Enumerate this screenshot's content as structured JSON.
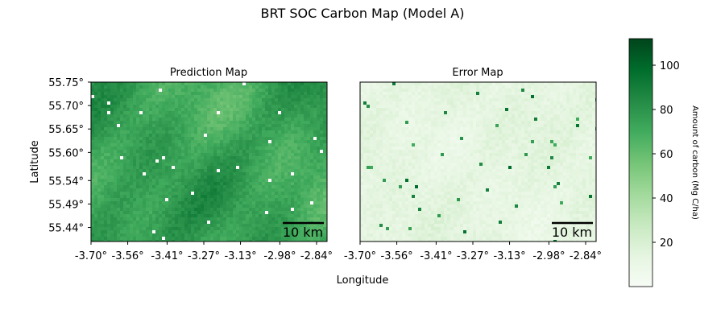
{
  "figure": {
    "title": "BRT SOC Carbon Map (Model A)"
  },
  "chart_data": [
    {
      "type": "heatmap",
      "title": "Prediction Map",
      "xlabel": "Longitude",
      "ylabel": "Latitude",
      "x_ticks": [
        "-3.70°",
        "-3.56°",
        "-3.41°",
        "-3.27°",
        "-3.13°",
        "-2.98°",
        "-2.84°"
      ],
      "y_ticks": [
        "55.75°",
        "55.70°",
        "55.65°",
        "55.60°",
        "55.54°",
        "55.49°",
        "55.44°"
      ],
      "xlim": [
        -3.7,
        -2.8
      ],
      "ylim": [
        55.41,
        55.75
      ],
      "scale_bar": "10 km",
      "value_range": [
        40,
        95
      ],
      "colormap": "Greens",
      "nodata_color": "#ffffff"
    },
    {
      "type": "heatmap",
      "title": "Error Map",
      "x_ticks": [
        "-3.70°",
        "-3.56°",
        "-3.41°",
        "-3.27°",
        "-3.13°",
        "-2.98°",
        "-2.84°"
      ],
      "xlim": [
        -3.7,
        -2.8
      ],
      "scale_bar": "10 km",
      "value_range": [
        0,
        30
      ],
      "colormap": "Greens"
    }
  ],
  "colorbar": {
    "label": "Amount of carbon (Mg C/ha)",
    "ticks": [
      "20",
      "40",
      "60",
      "80",
      "100"
    ],
    "range": [
      0,
      112
    ],
    "colormap": "Greens",
    "colors": [
      "#f7fcf5",
      "#e5f5e0",
      "#c7e9c0",
      "#a1d99b",
      "#74c476",
      "#41ab5d",
      "#238b45",
      "#006d2c",
      "#00441b"
    ]
  }
}
